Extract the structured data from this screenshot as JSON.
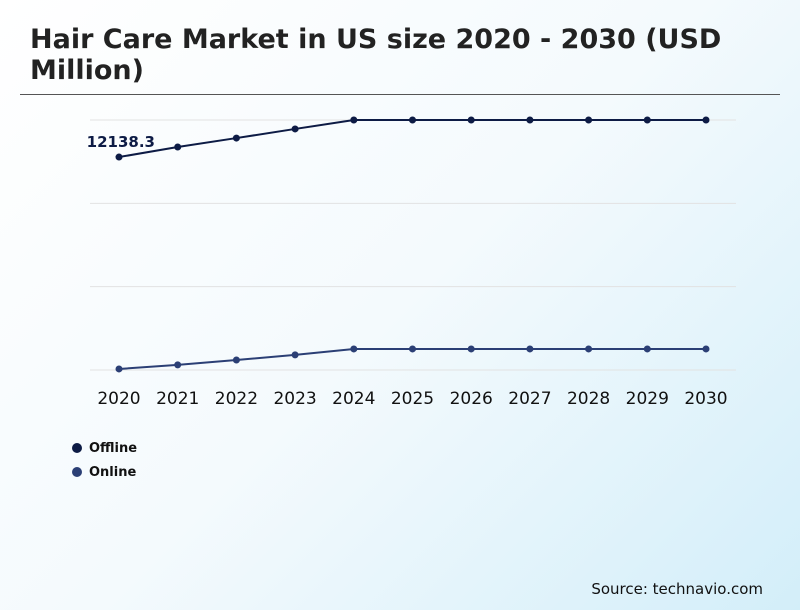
{
  "chart_data": {
    "type": "line",
    "title": "Hair Care Market in US size 2020 - 2030 (USD Million)",
    "categories": [
      "2020",
      "2021",
      "2022",
      "2023",
      "2024",
      "2025",
      "2026",
      "2027",
      "2028",
      "2029",
      "2030"
    ],
    "series": [
      {
        "name": "Offline",
        "color": "#0d1b45",
        "values": [
          12138.3,
          12710,
          13220,
          13740,
          14250,
          14250,
          14250,
          14250,
          14250,
          14250,
          14250
        ]
      },
      {
        "name": "Online",
        "color": "#2b3f75",
        "values": [
          60,
          290,
          570,
          860,
          1200,
          1200,
          1200,
          1200,
          1200,
          1200,
          1200
        ]
      }
    ],
    "data_labels": [
      {
        "series": "Offline",
        "category": "2020",
        "text": "12138.3"
      }
    ],
    "ylim": [
      0,
      14250
    ],
    "grid": true,
    "y_tick_labels_shown": false,
    "legend_placement": "bottom-left"
  },
  "source": "Source: technavio.com"
}
